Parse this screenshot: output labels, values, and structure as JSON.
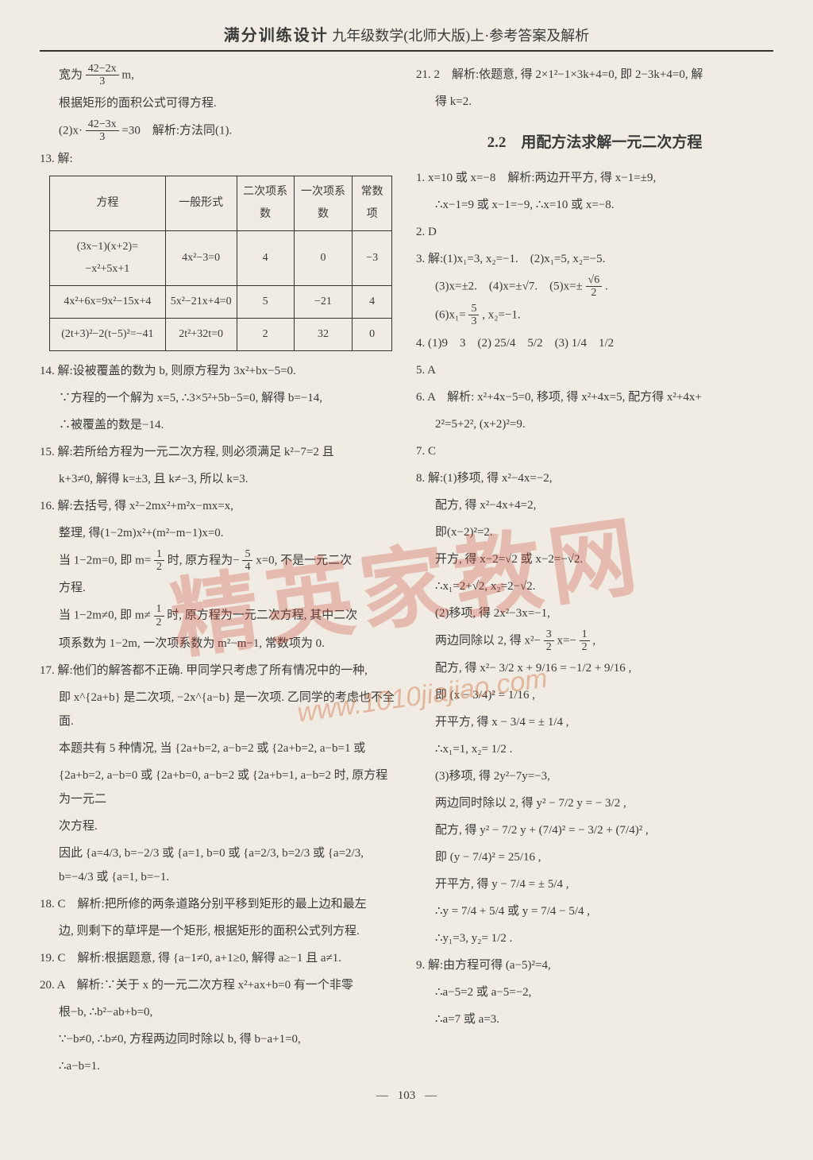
{
  "header": {
    "title_bold": "满分训练设计",
    "title_rest": " 九年级数学(北师大版)上·参考答案及解析"
  },
  "watermark_main": "精英家教网",
  "watermark_url": "www.1010jiajiao.com",
  "footer": {
    "page_number": "103"
  },
  "left": {
    "l1": "宽为",
    "frac1_num": "42−2x",
    "frac1_den": "3",
    "l1b": " m,",
    "l2": "根据矩形的面积公式可得方程.",
    "l3a": "(2)x·",
    "frac2_num": "42−3x",
    "frac2_den": "3",
    "l3b": "=30　解析:方法同(1).",
    "l4": "13. 解:",
    "table": {
      "headers": [
        "方程",
        "一般形式",
        "二次项系数",
        "一次项系数",
        "常数项"
      ],
      "rows": [
        [
          "(3x−1)(x+2)= −x²+5x+1",
          "4x²−3=0",
          "4",
          "0",
          "−3"
        ],
        [
          "4x²+6x=9x²−15x+4",
          "5x²−21x+4=0",
          "5",
          "−21",
          "4"
        ],
        [
          "(2t+3)²−2(t−5)²=−41",
          "2t²+32t=0",
          "2",
          "32",
          "0"
        ]
      ]
    },
    "p14a": "14. 解:设被覆盖的数为 b, 则原方程为 3x²+bx−5=0.",
    "p14b": "∵方程的一个解为 x=5, ∴3×5²+5b−5=0, 解得 b=−14,",
    "p14c": "∴被覆盖的数是−14.",
    "p15a": "15. 解:若所给方程为一元二次方程, 则必须满足 k²−7=2 且",
    "p15b": "k+3≠0, 解得 k=±3, 且 k≠−3, 所以 k=3.",
    "p16a": "16. 解:去括号, 得 x²−2mx²+m²x−mx=x,",
    "p16b": "整理, 得(1−2m)x²+(m²−m−1)x=0.",
    "p16c_a": "当 1−2m=0, 即 m=",
    "p16c_num": "1",
    "p16c_den": "2",
    "p16c_b": "时, 原方程为−",
    "p16c_num2": "5",
    "p16c_den2": "4",
    "p16c_c": "x=0, 不是一元二次",
    "p16d": "方程.",
    "p16e_a": "当 1−2m≠0, 即 m≠",
    "p16e_num": "1",
    "p16e_den": "2",
    "p16e_b": "时, 原方程为一元二次方程, 其中二次",
    "p16f": "项系数为 1−2m, 一次项系数为 m²−m−1, 常数项为 0.",
    "p17a": "17. 解:他们的解答都不正确. 甲同学只考虑了所有情况中的一种,",
    "p17b": "即 x^{2a+b} 是二次项, −2x^{a−b} 是一次项. 乙同学的考虑也不全面.",
    "p17c": "本题共有 5 种情况, 当 {2a+b=2, a−b=2  或 {2a+b=2, a−b=1  或",
    "p17d": "{2a+b=2, a−b=0 或 {2a+b=0, a−b=2 或 {2a+b=1, a−b=2 时, 原方程为一元二",
    "p17e": "次方程.",
    "p17f": "因此 {a=4/3, b=−2/3 或 {a=1, b=0 或 {a=2/3, b=2/3 或 {a=2/3, b=−4/3 或 {a=1, b=−1.",
    "p18a": "18. C　解析:把所修的两条道路分别平移到矩形的最上边和最左",
    "p18b": "边, 则剩下的草坪是一个矩形, 根据矩形的面积公式列方程.",
    "p19": "19. C　解析:根据题意, 得 {a−1≠0, a+1≥0, 解得 a≥−1 且 a≠1.",
    "p20a": "20. A　解析:∵关于 x 的一元二次方程 x²+ax+b=0 有一个非零",
    "p20b": "根−b, ∴b²−ab+b=0,",
    "p20c": "∵−b≠0, ∴b≠0, 方程两边同时除以 b, 得 b−a+1=0,",
    "p20d": "∴a−b=1."
  },
  "right": {
    "p21a": "21. 2　解析:依题意, 得 2×1²−1×3k+4=0, 即 2−3k+4=0, 解",
    "p21b": "得 k=2.",
    "sec_title": "2.2　用配方法求解一元二次方程",
    "r1a": "1. x=10 或 x=−8　解析:两边开平方, 得 x−1=±9,",
    "r1b": "∴x−1=9 或 x−1=−9, ∴x=10 或 x=−8.",
    "r2": "2. D",
    "r3a": "3. 解:(1)x₁=3, x₂=−1.　(2)x₁=5, x₂=−5.",
    "r3b": "(3)x=±2.　(4)x=±√7.　(5)x=±",
    "r3b_num": "√6",
    "r3b_den": "2",
    "r3b_end": ".",
    "r3c_a": "(6)x₁=",
    "r3c_num": "5",
    "r3c_den": "3",
    "r3c_b": ", x₂=−1.",
    "r4": "4. (1)9　3　(2) 25/4　5/2　(3) 1/4　1/2",
    "r5": "5. A",
    "r6a": "6. A　解析: x²+4x−5=0, 移项, 得 x²+4x=5, 配方得 x²+4x+",
    "r6b": "2²=5+2², (x+2)²=9.",
    "r7": "7. C",
    "r8a": "8. 解:(1)移项, 得 x²−4x=−2,",
    "r8b": "配方, 得 x²−4x+4=2,",
    "r8c": "即(x−2)²=2.",
    "r8d": "开方, 得 x−2=√2 或 x−2=−√2.",
    "r8e": "∴x₁=2+√2, x₂=2−√2.",
    "r8f": "(2)移项, 得 2x²−3x=−1,",
    "r8g_a": "两边同除以 2, 得 x²−",
    "r8g_num": "3",
    "r8g_den": "2",
    "r8g_b": "x=−",
    "r8g_num2": "1",
    "r8g_den2": "2",
    "r8g_c": ",",
    "r8h": "配方, 得 x²− 3/2 x + 9/16 = −1/2 + 9/16 ,",
    "r8i": "即 (x − 3/4)² = 1/16 ,",
    "r8j": "开平方, 得 x − 3/4 = ± 1/4 ,",
    "r8k": "∴x₁=1, x₂= 1/2 .",
    "r8l": "(3)移项, 得 2y²−7y=−3,",
    "r8m": "两边同时除以 2, 得 y² − 7/2 y = − 3/2 ,",
    "r8n": "配方, 得 y² − 7/2 y + (7/4)² = − 3/2 + (7/4)² ,",
    "r8o": "即 (y − 7/4)² = 25/16 ,",
    "r8p": "开平方, 得 y − 7/4 = ± 5/4 ,",
    "r8q": "∴y = 7/4 + 5/4 或 y = 7/4 − 5/4 ,",
    "r8r": "∴y₁=3, y₂= 1/2 .",
    "r9a": "9. 解:由方程可得 (a−5)²=4,",
    "r9b": "∴a−5=2 或 a−5=−2,",
    "r9c": "∴a=7 或 a=3."
  }
}
